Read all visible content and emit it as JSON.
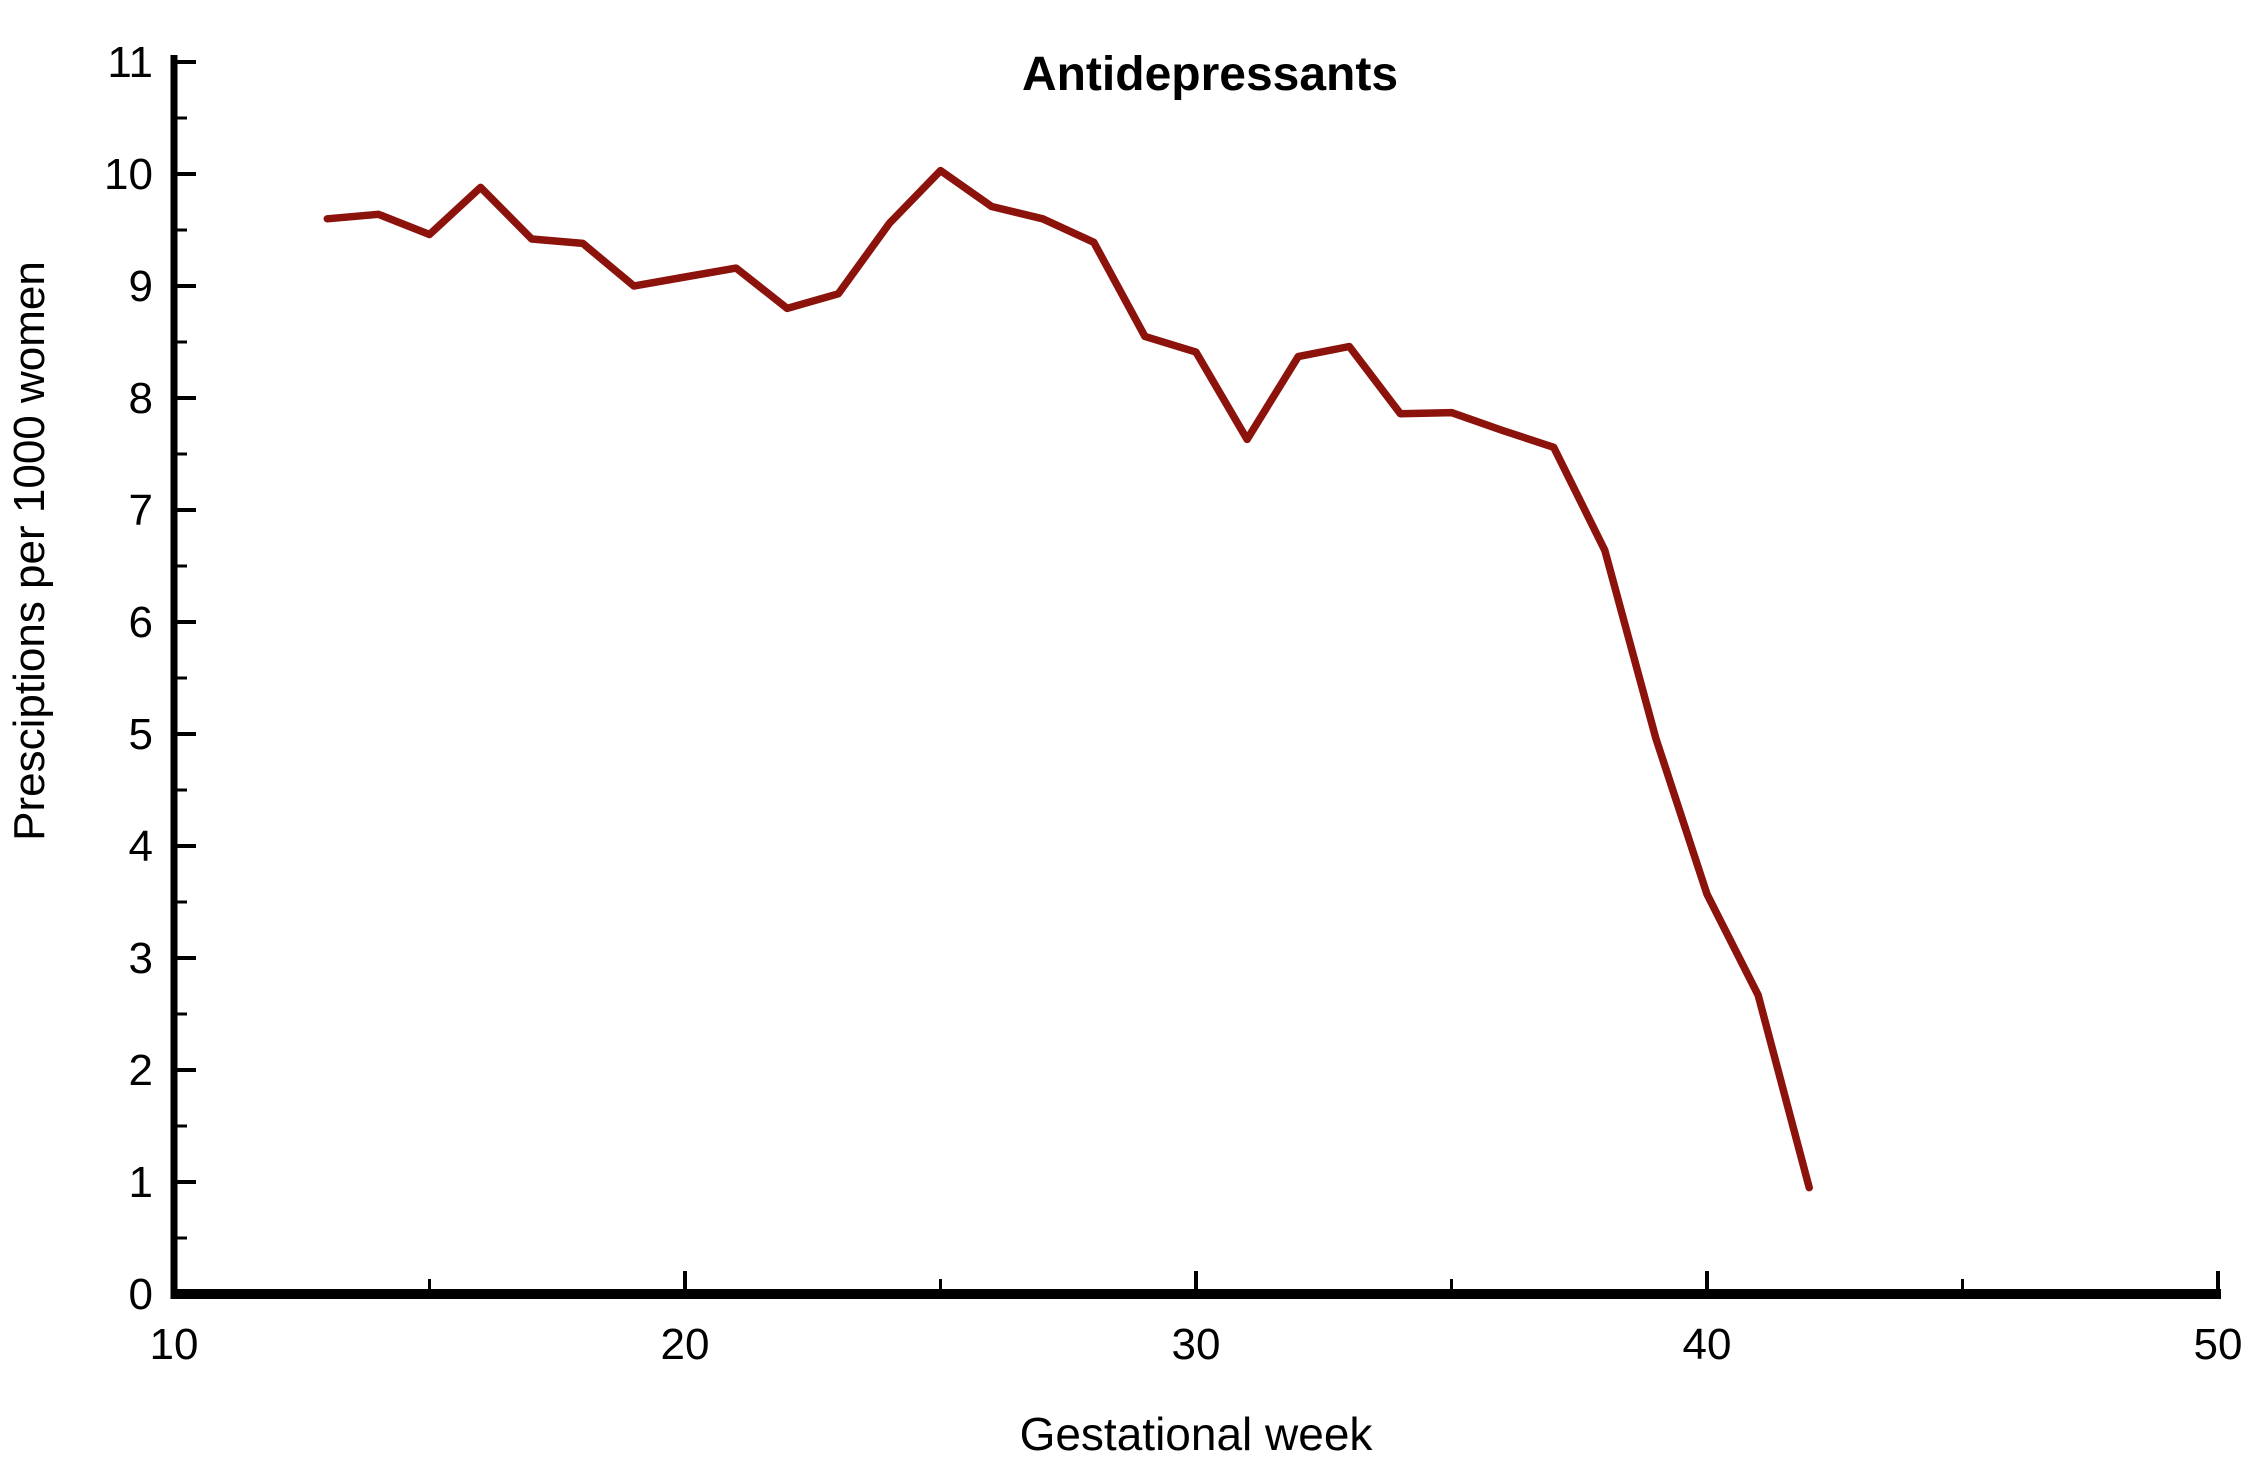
{
  "chart_data": {
    "type": "line",
    "title": "Antidepressants",
    "xlabel": "Gestational week",
    "ylabel": "Presciptions per 1000 women",
    "x": [
      13,
      14,
      15,
      16,
      17,
      18,
      19,
      20,
      21,
      22,
      23,
      24,
      25,
      26,
      27,
      28,
      29,
      30,
      31,
      32,
      33,
      34,
      35,
      36,
      37,
      38,
      39,
      40,
      41,
      42
    ],
    "values": [
      9.6,
      9.64,
      9.46,
      9.88,
      9.42,
      9.38,
      9.0,
      9.08,
      9.16,
      8.8,
      8.93,
      9.56,
      10.03,
      9.71,
      9.6,
      9.39,
      8.55,
      8.41,
      7.63,
      8.37,
      8.46,
      7.86,
      7.87,
      7.71,
      7.56,
      6.64,
      4.96,
      3.57,
      2.67,
      0.95
    ],
    "xlim": [
      10,
      50
    ],
    "ylim": [
      0,
      11
    ],
    "x_major_ticks": [
      10,
      20,
      30,
      40,
      50
    ],
    "x_minor_ticks": [
      15,
      25,
      35,
      45
    ],
    "y_major_ticks": [
      0,
      1,
      2,
      3,
      4,
      5,
      6,
      7,
      8,
      9,
      10,
      11
    ],
    "y_minor_ticks": [
      0.5,
      1.5,
      2.5,
      3.5,
      4.5,
      5.5,
      6.5,
      7.5,
      8.5,
      9.5,
      10.5
    ],
    "x_tick_labels": [
      "10",
      "20",
      "30",
      "40",
      "50"
    ],
    "y_tick_labels": [
      "0",
      "1",
      "2",
      "3",
      "4",
      "5",
      "6",
      "7",
      "8",
      "9",
      "10",
      "11"
    ],
    "line_color": "#8C120C",
    "axis_color": "#000000",
    "background_color": "#ffffff",
    "grid": false,
    "legend": "none",
    "ticks_direction": "inward"
  }
}
